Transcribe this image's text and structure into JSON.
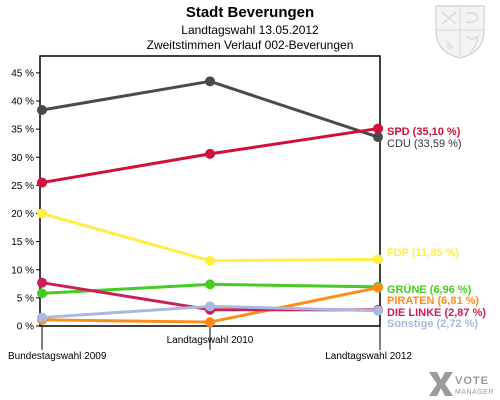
{
  "header": {
    "title": "Stadt Beverungen",
    "subtitle1": "Landtagswahl 13.05.2012",
    "subtitle2": "Zweitstimmen Verlauf 002-Beverungen"
  },
  "logo": {
    "word1": "VOTE",
    "word2": "MANAGER"
  },
  "icons": {
    "crest": "coat-of-arms-icon",
    "brand": "votemanager-logo-icon"
  },
  "chart_data": {
    "type": "line",
    "title": "Stadt Beverungen",
    "categories": [
      "Bundestagswahl 2009",
      "Landtagswahl 2010",
      "Landtagswahl 2012"
    ],
    "ylim": [
      0,
      48
    ],
    "yticks": [
      0,
      5,
      10,
      15,
      20,
      25,
      30,
      35,
      40,
      45
    ],
    "ytick_labels": [
      "0 %",
      "5 %",
      "10 %",
      "15 %",
      "20 %",
      "25 %",
      "30 %",
      "35 %",
      "40 %",
      "45 %"
    ],
    "grid": false,
    "legend": "right end labels",
    "series": [
      {
        "name": "CDU",
        "color": "#4a4a4a",
        "values": [
          38.4,
          43.5,
          33.59
        ],
        "end_label": "CDU (33,59 %)"
      },
      {
        "name": "SPD",
        "color": "#d0103a",
        "values": [
          25.5,
          30.6,
          35.1
        ],
        "end_label": "SPD (35,10 %)"
      },
      {
        "name": "FDP",
        "color": "#ffee44",
        "values": [
          20.0,
          11.6,
          11.85
        ],
        "end_label": "FDP (11,85 %)"
      },
      {
        "name": "GRÜNE",
        "color": "#44cc22",
        "values": [
          5.8,
          7.4,
          6.96
        ],
        "end_label": "GRÜNE (6,96 %)"
      },
      {
        "name": "PIRATEN",
        "color": "#ff8c1a",
        "values": [
          1.1,
          0.7,
          6.81
        ],
        "end_label": "PIRATEN (6,81 %)"
      },
      {
        "name": "DIE LINKE",
        "color": "#cc1e5a",
        "values": [
          7.7,
          2.9,
          2.87
        ],
        "end_label": "DIE LINKE (2,87 %)"
      },
      {
        "name": "Sonstige",
        "color": "#a8b8e0",
        "values": [
          1.5,
          3.5,
          2.72
        ],
        "end_label": "Sonstige (2,72 %)"
      }
    ]
  }
}
